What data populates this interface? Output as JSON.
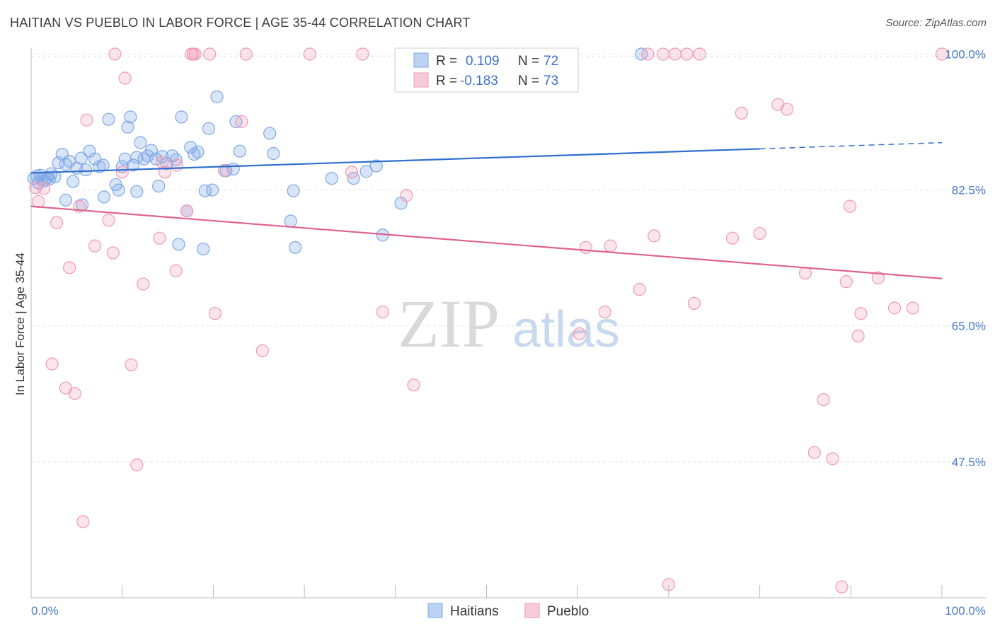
{
  "title": "HAITIAN VS PUEBLO IN LABOR FORCE | AGE 35-44 CORRELATION CHART",
  "source": "Source: ZipAtlas.com",
  "chart_data": {
    "type": "scatter",
    "title": "HAITIAN VS PUEBLO IN LABOR FORCE | AGE 35-44 CORRELATION CHART",
    "xlabel": "",
    "ylabel": "In Labor Force | Age 35-44",
    "xlim": [
      0,
      100
    ],
    "ylim": [
      30,
      101.5
    ],
    "y_ticks": [
      47.5,
      65.0,
      82.5,
      100.0
    ],
    "y_tick_labels": [
      "47.5%",
      "65.0%",
      "82.5%",
      "100.0%"
    ],
    "x_tick_labels": [
      "0.0%",
      "100.0%"
    ],
    "grid": true,
    "watermark": {
      "zip": "ZIP",
      "atlas": "atlas"
    },
    "legend": {
      "r_label": "R =",
      "n_label": "N =",
      "entries": [
        {
          "name": "Haitians",
          "r": "0.109",
          "n": "72",
          "color": "#7fa8e6"
        },
        {
          "name": "Pueblo",
          "r": "-0.183",
          "n": "73",
          "color": "#f099b5"
        }
      ]
    },
    "series": [
      {
        "name": "Haitians",
        "color": "#7fa8e6",
        "line_color": "#2f6fcf",
        "trend": {
          "x0": 0,
          "y0": 84.7,
          "x1": 80,
          "y1": 87.8,
          "dash_to": 100,
          "dash_y": 88.6
        },
        "points": [
          [
            0.3,
            84.0
          ],
          [
            0.6,
            84.3
          ],
          [
            0.8,
            83.4
          ],
          [
            1.0,
            84.4
          ],
          [
            1.2,
            83.9
          ],
          [
            1.5,
            83.7
          ],
          [
            1.8,
            84.1
          ],
          [
            2.2,
            84.6
          ],
          [
            2.6,
            84.2
          ],
          [
            3.0,
            86.0
          ],
          [
            3.4,
            87.1
          ],
          [
            3.8,
            85.8
          ],
          [
            4.2,
            86.2
          ],
          [
            4.6,
            83.6
          ],
          [
            5.0,
            85.3
          ],
          [
            5.5,
            86.6
          ],
          [
            6.0,
            85.1
          ],
          [
            6.4,
            87.5
          ],
          [
            7.0,
            86.5
          ],
          [
            7.5,
            85.5
          ],
          [
            7.9,
            85.7
          ],
          [
            8.5,
            91.6
          ],
          [
            9.3,
            83.2
          ],
          [
            9.6,
            82.5
          ],
          [
            10.0,
            85.5
          ],
          [
            10.3,
            86.5
          ],
          [
            10.6,
            90.6
          ],
          [
            10.9,
            91.9
          ],
          [
            11.2,
            85.7
          ],
          [
            11.6,
            86.7
          ],
          [
            12.0,
            88.6
          ],
          [
            12.4,
            86.5
          ],
          [
            12.8,
            86.9
          ],
          [
            13.2,
            87.6
          ],
          [
            13.7,
            86.5
          ],
          [
            14.0,
            83.0
          ],
          [
            14.4,
            86.8
          ],
          [
            14.9,
            85.9
          ],
          [
            15.5,
            86.9
          ],
          [
            15.9,
            86.4
          ],
          [
            16.2,
            75.5
          ],
          [
            16.5,
            91.9
          ],
          [
            17.1,
            79.8
          ],
          [
            17.5,
            88.0
          ],
          [
            17.9,
            87.1
          ],
          [
            18.3,
            87.4
          ],
          [
            18.9,
            74.9
          ],
          [
            19.1,
            82.4
          ],
          [
            19.5,
            90.4
          ],
          [
            19.9,
            82.5
          ],
          [
            20.4,
            94.5
          ],
          [
            21.4,
            85.0
          ],
          [
            22.2,
            85.2
          ],
          [
            22.5,
            91.3
          ],
          [
            22.9,
            87.5
          ],
          [
            3.8,
            81.2
          ],
          [
            5.6,
            80.6
          ],
          [
            8.0,
            81.6
          ],
          [
            11.6,
            82.3
          ],
          [
            26.2,
            89.8
          ],
          [
            26.6,
            87.2
          ],
          [
            28.5,
            78.5
          ],
          [
            28.8,
            82.4
          ],
          [
            29.0,
            75.1
          ],
          [
            33.0,
            84.0
          ],
          [
            35.4,
            84.0
          ],
          [
            36.8,
            84.9
          ],
          [
            37.9,
            85.6
          ],
          [
            38.6,
            76.7
          ],
          [
            40.6,
            80.8
          ],
          [
            67.0,
            100.0
          ],
          [
            2.0,
            83.9
          ]
        ]
      },
      {
        "name": "Pueblo",
        "color": "#f099b5",
        "line_color": "#e0628e",
        "trend": {
          "x0": 0,
          "y0": 80.4,
          "x1": 100,
          "y1": 71.1
        },
        "points": [
          [
            0.5,
            82.8
          ],
          [
            0.8,
            81.0
          ],
          [
            1.4,
            82.7
          ],
          [
            2.3,
            60.1
          ],
          [
            2.8,
            78.3
          ],
          [
            3.8,
            57.0
          ],
          [
            4.2,
            72.5
          ],
          [
            4.8,
            56.3
          ],
          [
            5.3,
            80.4
          ],
          [
            5.7,
            39.8
          ],
          [
            6.1,
            91.5
          ],
          [
            7.0,
            75.3
          ],
          [
            8.5,
            78.6
          ],
          [
            9.0,
            74.4
          ],
          [
            9.2,
            100.0
          ],
          [
            10.0,
            84.8
          ],
          [
            10.3,
            96.9
          ],
          [
            11.0,
            60.0
          ],
          [
            11.6,
            47.1
          ],
          [
            12.3,
            70.4
          ],
          [
            14.1,
            76.3
          ],
          [
            14.4,
            86.1
          ],
          [
            14.7,
            84.8
          ],
          [
            15.9,
            72.1
          ],
          [
            16.0,
            85.7
          ],
          [
            17.1,
            79.8
          ],
          [
            17.6,
            100.0
          ],
          [
            17.8,
            100.0
          ],
          [
            18.0,
            100.0
          ],
          [
            19.6,
            100.0
          ],
          [
            20.2,
            66.6
          ],
          [
            21.2,
            85.0
          ],
          [
            23.1,
            91.3
          ],
          [
            23.6,
            100.0
          ],
          [
            25.4,
            61.8
          ],
          [
            30.6,
            100.0
          ],
          [
            35.2,
            84.8
          ],
          [
            36.4,
            100.0
          ],
          [
            38.6,
            66.8
          ],
          [
            41.2,
            81.8
          ],
          [
            42.0,
            57.4
          ],
          [
            45.4,
            100.0
          ],
          [
            60.2,
            64.0
          ],
          [
            60.9,
            75.1
          ],
          [
            63.0,
            66.8
          ],
          [
            63.6,
            75.3
          ],
          [
            66.8,
            69.7
          ],
          [
            67.7,
            100.0
          ],
          [
            68.4,
            76.6
          ],
          [
            69.4,
            100.0
          ],
          [
            70.0,
            31.7
          ],
          [
            70.7,
            100.0
          ],
          [
            72.0,
            100.0
          ],
          [
            72.8,
            67.9
          ],
          [
            73.4,
            100.0
          ],
          [
            77.0,
            76.3
          ],
          [
            78.0,
            92.4
          ],
          [
            80.0,
            76.9
          ],
          [
            82.0,
            93.5
          ],
          [
            83.0,
            92.9
          ],
          [
            85.0,
            71.8
          ],
          [
            86.0,
            48.7
          ],
          [
            87.0,
            55.5
          ],
          [
            88.0,
            47.9
          ],
          [
            89.0,
            31.4
          ],
          [
            89.5,
            70.7
          ],
          [
            89.9,
            80.4
          ],
          [
            90.8,
            63.7
          ],
          [
            91.1,
            66.6
          ],
          [
            93.0,
            71.2
          ],
          [
            94.8,
            67.3
          ],
          [
            96.8,
            67.3
          ],
          [
            100.0,
            100.0
          ]
        ]
      }
    ]
  }
}
